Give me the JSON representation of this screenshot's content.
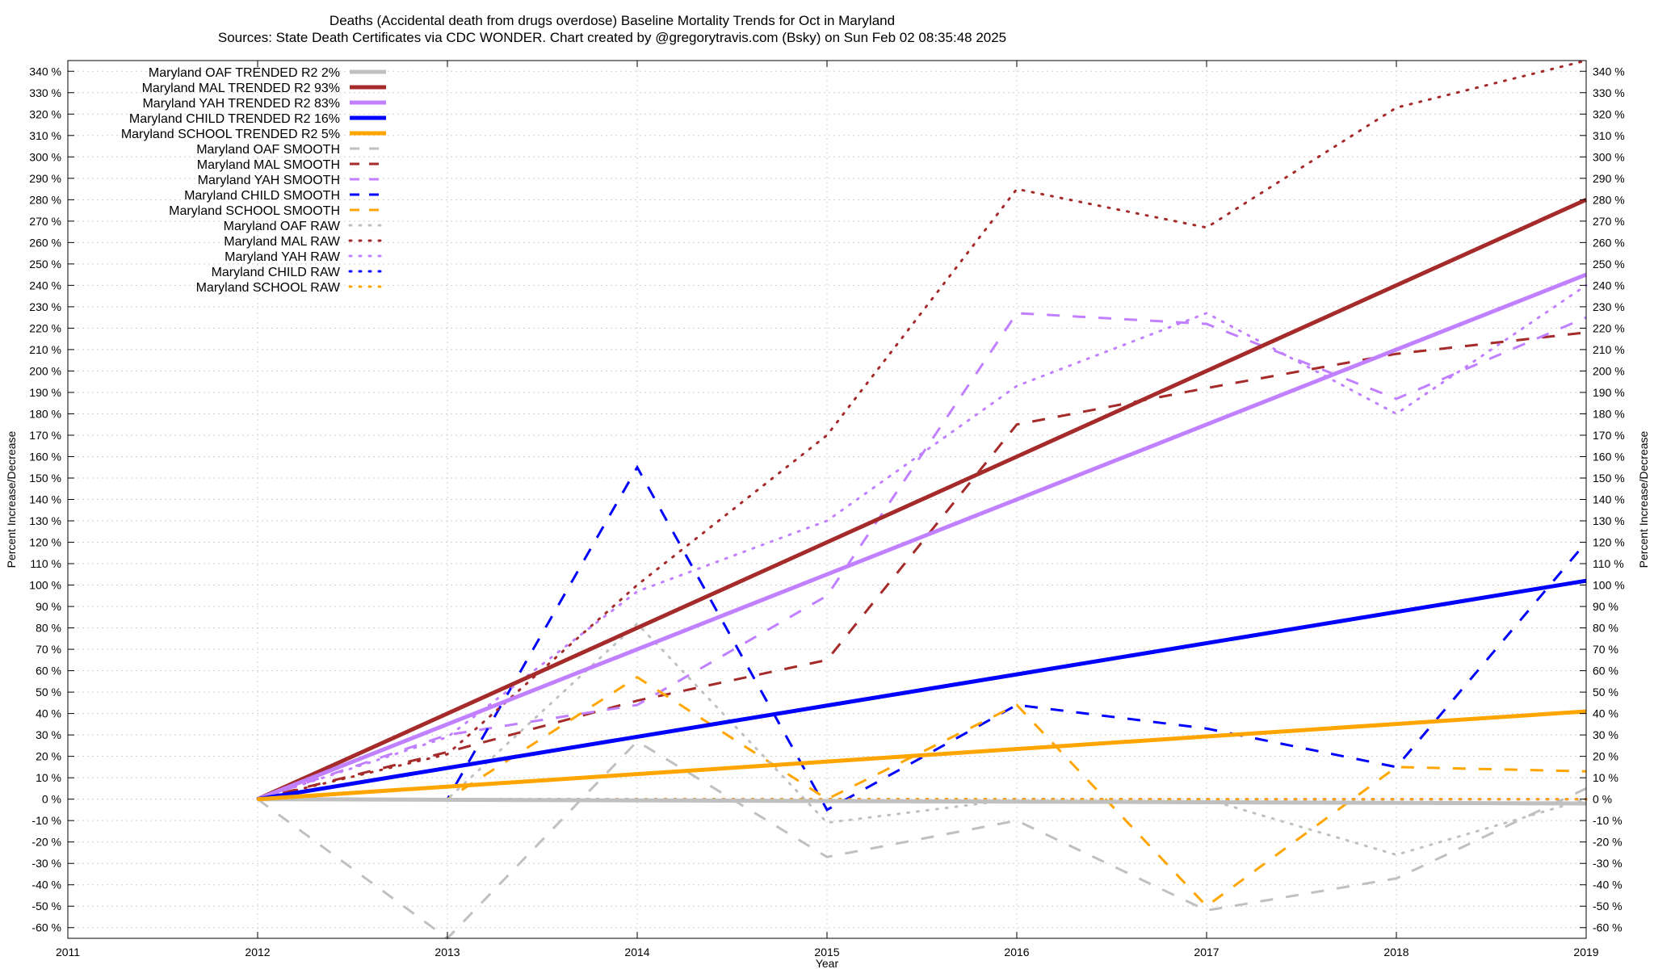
{
  "chart_data": {
    "type": "line",
    "title_line1": "Deaths (Accidental death from drugs overdose)  Baseline Mortality Trends for Oct in Maryland",
    "title_line2": "Sources: State Death Certificates via CDC WONDER.                Chart created by @gregorytravis.com (Bsky) on Sun Feb 02 08:35:48 2025",
    "xlabel": "Year",
    "ylabel": "Percent Increase/Decrease",
    "ylabel_right": "Percent Increase/Decrease",
    "xlim": [
      2011,
      2019
    ],
    "ylim": [
      -65,
      345
    ],
    "x_ticks": [
      "2011",
      "2012",
      "2013",
      "2014",
      "2015",
      "2016",
      "2017",
      "2018",
      "2019"
    ],
    "y_ticks": [
      "-60 %",
      "-50 %",
      "-40 %",
      "-30 %",
      "-20 %",
      "-10 %",
      "0 %",
      "10 %",
      "20 %",
      "30 %",
      "40 %",
      "50 %",
      "60 %",
      "70 %",
      "80 %",
      "90 %",
      "100 %",
      "110 %",
      "120 %",
      "130 %",
      "140 %",
      "150 %",
      "160 %",
      "170 %",
      "180 %",
      "190 %",
      "200 %",
      "210 %",
      "220 %",
      "230 %",
      "240 %",
      "250 %",
      "260 %",
      "270 %",
      "280 %",
      "290 %",
      "300 %",
      "310 %",
      "320 %",
      "330 %",
      "340 %"
    ],
    "grid": true,
    "legend_position": "top-left",
    "series": [
      {
        "name": "Maryland OAF TRENDED R2  2%",
        "style": "solid",
        "color": "#c0c0c0",
        "x": [
          2012,
          2019
        ],
        "y": [
          0,
          -2
        ]
      },
      {
        "name": "Maryland MAL TRENDED R2  93%",
        "style": "solid",
        "color": "#a52a2a",
        "x": [
          2012,
          2019
        ],
        "y": [
          0,
          280
        ]
      },
      {
        "name": "Maryland YAH TRENDED R2  83%",
        "style": "solid",
        "color": "#c080ff",
        "x": [
          2012,
          2019
        ],
        "y": [
          0,
          245
        ]
      },
      {
        "name": "Maryland CHILD TRENDED R2  16%",
        "style": "solid",
        "color": "#0000ff",
        "x": [
          2012,
          2019
        ],
        "y": [
          0,
          102
        ]
      },
      {
        "name": "Maryland SCHOOL TRENDED R2   5%",
        "style": "solid",
        "color": "#ffa500",
        "x": [
          2012,
          2019
        ],
        "y": [
          0,
          41
        ]
      },
      {
        "name": "Maryland OAF SMOOTH",
        "style": "dashed",
        "color": "#c0c0c0",
        "x": [
          2012,
          2013,
          2014,
          2015,
          2016,
          2017,
          2018,
          2019
        ],
        "y": [
          0,
          -65,
          27,
          -27,
          -10,
          -52,
          -37,
          5
        ]
      },
      {
        "name": "Maryland MAL SMOOTH",
        "style": "dashed",
        "color": "#a52a2a",
        "x": [
          2012,
          2013,
          2014,
          2015,
          2016,
          2017,
          2018,
          2019
        ],
        "y": [
          0,
          22,
          46,
          65,
          175,
          192,
          208,
          218
        ]
      },
      {
        "name": "Maryland YAH SMOOTH",
        "style": "dashed",
        "color": "#c080ff",
        "x": [
          2012,
          2013,
          2014,
          2015,
          2016,
          2017,
          2018,
          2019
        ],
        "y": [
          0,
          30,
          44,
          95,
          227,
          222,
          187,
          225
        ]
      },
      {
        "name": "Maryland CHILD SMOOTH",
        "style": "dashed",
        "color": "#0000ff",
        "x": [
          2012,
          2013,
          2014,
          2015,
          2016,
          2017,
          2018,
          2019
        ],
        "y": [
          0,
          0,
          155,
          -5,
          44,
          33,
          15,
          120
        ]
      },
      {
        "name": "Maryland SCHOOL SMOOTH",
        "style": "dashed",
        "color": "#ffa500",
        "x": [
          2012,
          2013,
          2014,
          2015,
          2016,
          2017,
          2018,
          2019
        ],
        "y": [
          0,
          0,
          57,
          0,
          44,
          -50,
          15,
          13
        ]
      },
      {
        "name": "Maryland OAF RAW",
        "style": "dotted",
        "color": "#c0c0c0",
        "x": [
          2012,
          2013,
          2014,
          2015,
          2016,
          2017,
          2018,
          2019
        ],
        "y": [
          0,
          0,
          82,
          -11,
          0,
          0,
          -26,
          0
        ]
      },
      {
        "name": "Maryland MAL RAW",
        "style": "dotted",
        "color": "#a52a2a",
        "x": [
          2012,
          2013,
          2014,
          2015,
          2016,
          2017,
          2018,
          2019
        ],
        "y": [
          0,
          21,
          100,
          170,
          285,
          267,
          323,
          345
        ]
      },
      {
        "name": "Maryland YAH RAW",
        "style": "dotted",
        "color": "#c080ff",
        "x": [
          2012,
          2013,
          2014,
          2015,
          2016,
          2017,
          2018,
          2019
        ],
        "y": [
          0,
          29,
          97,
          130,
          193,
          227,
          180,
          240
        ]
      },
      {
        "name": "Maryland CHILD RAW",
        "style": "dotted",
        "color": "#0000ff",
        "x": [
          2012,
          2013,
          2014,
          2015,
          2016,
          2017,
          2018,
          2019
        ],
        "y": [
          0,
          0,
          0,
          0,
          0,
          0,
          0,
          0
        ]
      },
      {
        "name": "Maryland SCHOOL RAW",
        "style": "dotted",
        "color": "#ffa500",
        "x": [
          2012,
          2013,
          2014,
          2015,
          2016,
          2017,
          2018,
          2019
        ],
        "y": [
          0,
          0,
          0,
          0,
          0,
          0,
          0,
          0
        ]
      }
    ]
  }
}
